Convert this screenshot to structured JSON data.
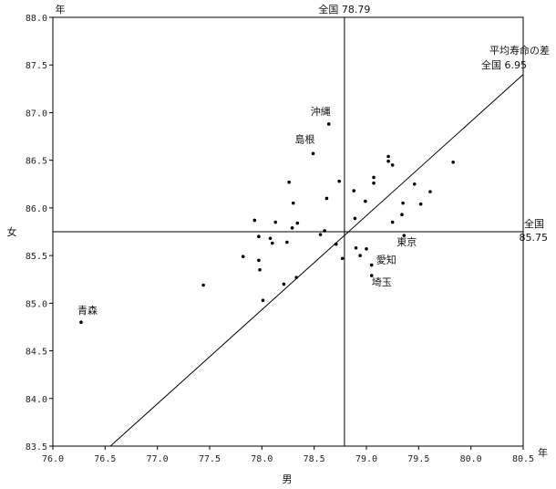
{
  "chart_data": {
    "type": "scatter",
    "title": "",
    "xlabel": "男",
    "ylabel": "女",
    "x_unit": "年",
    "y_unit": "年",
    "xlim": [
      76.0,
      80.5
    ],
    "ylim": [
      83.5,
      88.0
    ],
    "xticks": [
      76.0,
      76.5,
      77.0,
      77.5,
      78.0,
      78.5,
      79.0,
      79.5,
      80.0,
      80.5
    ],
    "yticks": [
      83.5,
      84.0,
      84.5,
      85.0,
      85.5,
      86.0,
      86.5,
      87.0,
      87.5,
      88.0
    ],
    "grid": false,
    "reference_lines": {
      "vertical": {
        "x": 78.79,
        "label": "全国 78.79"
      },
      "horizontal": {
        "y": 85.75,
        "label_line1": "全国",
        "label_line2": "85.75"
      },
      "diagonal": {
        "offset": 6.95,
        "label_line1": "平均寿命の差",
        "label_line2": "全国 6.95"
      }
    },
    "points": [
      {
        "x": 76.27,
        "y": 84.8,
        "label": "青森"
      },
      {
        "x": 77.44,
        "y": 85.19
      },
      {
        "x": 77.82,
        "y": 85.49
      },
      {
        "x": 77.93,
        "y": 85.87
      },
      {
        "x": 77.97,
        "y": 85.7
      },
      {
        "x": 77.97,
        "y": 85.45
      },
      {
        "x": 77.98,
        "y": 85.35
      },
      {
        "x": 78.01,
        "y": 85.03
      },
      {
        "x": 78.08,
        "y": 85.68
      },
      {
        "x": 78.1,
        "y": 85.63
      },
      {
        "x": 78.13,
        "y": 85.85
      },
      {
        "x": 78.21,
        "y": 85.2
      },
      {
        "x": 78.24,
        "y": 85.64
      },
      {
        "x": 78.26,
        "y": 86.27
      },
      {
        "x": 78.29,
        "y": 85.79
      },
      {
        "x": 78.3,
        "y": 86.05
      },
      {
        "x": 78.33,
        "y": 85.27
      },
      {
        "x": 78.34,
        "y": 85.84
      },
      {
        "x": 78.49,
        "y": 86.57,
        "label": "島根"
      },
      {
        "x": 78.56,
        "y": 85.72
      },
      {
        "x": 78.6,
        "y": 85.76
      },
      {
        "x": 78.62,
        "y": 86.1
      },
      {
        "x": 78.64,
        "y": 86.88,
        "label": "沖縄"
      },
      {
        "x": 78.71,
        "y": 85.62
      },
      {
        "x": 78.74,
        "y": 86.28
      },
      {
        "x": 78.77,
        "y": 85.47
      },
      {
        "x": 78.88,
        "y": 86.18
      },
      {
        "x": 78.89,
        "y": 85.89
      },
      {
        "x": 78.9,
        "y": 85.58
      },
      {
        "x": 78.94,
        "y": 85.5
      },
      {
        "x": 78.99,
        "y": 86.07
      },
      {
        "x": 79.0,
        "y": 85.57
      },
      {
        "x": 79.05,
        "y": 85.4,
        "label": "愛知"
      },
      {
        "x": 79.05,
        "y": 85.29,
        "label": "埼玉"
      },
      {
        "x": 79.07,
        "y": 86.26
      },
      {
        "x": 79.07,
        "y": 86.32
      },
      {
        "x": 79.21,
        "y": 86.54
      },
      {
        "x": 79.21,
        "y": 86.49
      },
      {
        "x": 79.25,
        "y": 86.45
      },
      {
        "x": 79.25,
        "y": 85.85
      },
      {
        "x": 79.34,
        "y": 85.93
      },
      {
        "x": 79.35,
        "y": 86.05
      },
      {
        "x": 79.36,
        "y": 85.71,
        "label": "東京"
      },
      {
        "x": 79.46,
        "y": 86.25
      },
      {
        "x": 79.52,
        "y": 86.04
      },
      {
        "x": 79.61,
        "y": 86.17
      },
      {
        "x": 79.83,
        "y": 86.48
      }
    ]
  }
}
